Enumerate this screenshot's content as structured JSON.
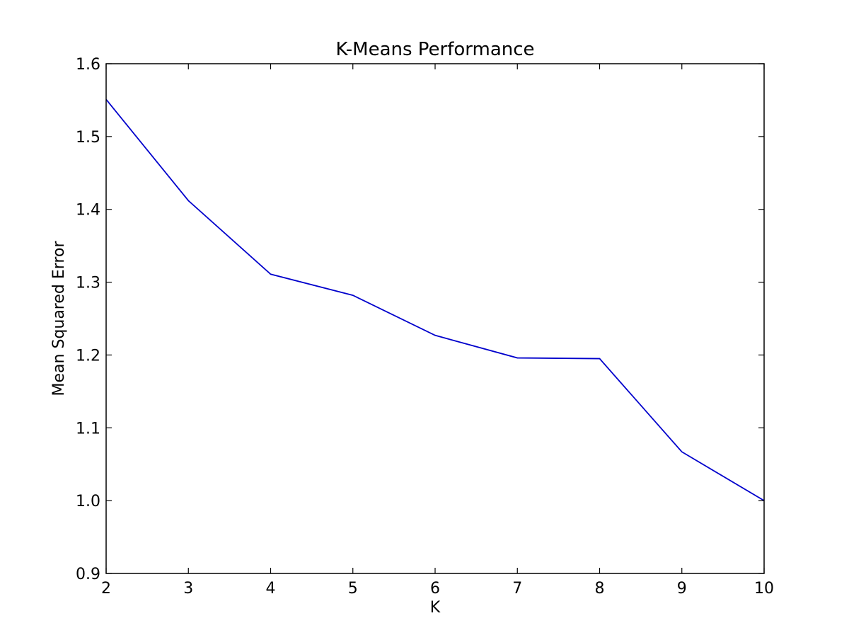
{
  "chart_data": {
    "type": "line",
    "title": "K-Means Performance",
    "xlabel": "K",
    "ylabel": "Mean Squared Error",
    "xlim": [
      2,
      10
    ],
    "ylim": [
      0.9,
      1.6
    ],
    "xticks": [
      2,
      3,
      4,
      5,
      6,
      7,
      8,
      9,
      10
    ],
    "yticks": [
      0.9,
      1.0,
      1.1,
      1.2,
      1.3,
      1.4,
      1.5,
      1.6
    ],
    "xtick_labels": [
      "2",
      "3",
      "4",
      "5",
      "6",
      "7",
      "8",
      "9",
      "10"
    ],
    "ytick_labels": [
      "0.9",
      "1.0",
      "1.1",
      "1.2",
      "1.3",
      "1.4",
      "1.5",
      "1.6"
    ],
    "grid": false,
    "legend": null,
    "series": [
      {
        "color": "#0000cc",
        "x": [
          2,
          3,
          4,
          5,
          6,
          7,
          8,
          9,
          10
        ],
        "y": [
          1.551,
          1.412,
          1.311,
          1.282,
          1.227,
          1.196,
          1.195,
          1.067,
          1.0
        ]
      }
    ]
  }
}
